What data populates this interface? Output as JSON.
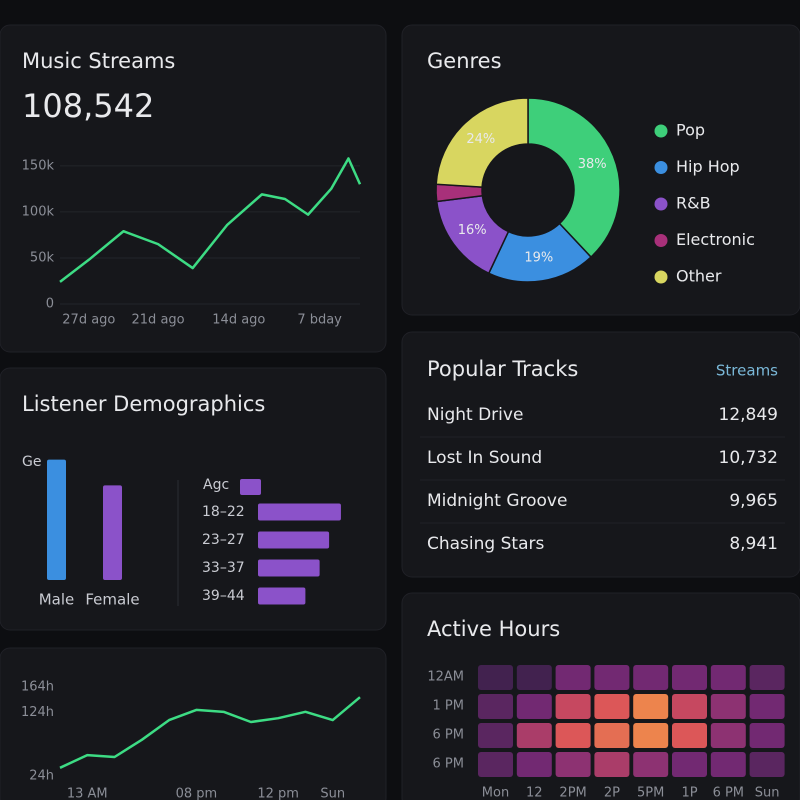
{
  "streams": {
    "title": "Music Streams",
    "total": "108,542",
    "chart": {
      "type": "line",
      "color": "#3ddc84",
      "x": [
        -29.5,
        -27,
        -24,
        -21,
        -18,
        -15,
        -12,
        -10,
        -8,
        -6,
        -4.5,
        -3.5
      ],
      "values": [
        24000,
        48000,
        79000,
        65000,
        39000,
        86000,
        119000,
        114000,
        97000,
        125000,
        158000,
        130000
      ],
      "xlim": [
        -29.5,
        -3.5
      ],
      "xticks": [
        {
          "value": -27,
          "label": "27d ago"
        },
        {
          "value": -21,
          "label": "21d ago"
        },
        {
          "value": -14,
          "label": "14d ago"
        },
        {
          "value": -7,
          "label": "7 bday"
        }
      ],
      "ylim": [
        0,
        165000
      ],
      "yticks": [
        0,
        {
          "value": 50000,
          "label": "50k"
        },
        {
          "value": 100000,
          "label": "100k"
        },
        {
          "value": 150000,
          "label": "150k"
        }
      ],
      "grid": true
    }
  },
  "genres": {
    "title": "Genres",
    "chart": {
      "type": "donut",
      "categories": [
        "Pop",
        "Hip Hop",
        "R&B",
        "Electronic",
        "Other"
      ],
      "values": [
        38,
        19,
        16,
        3,
        24
      ],
      "value_labels": [
        "38%",
        "19%",
        "16%",
        null,
        "24%"
      ],
      "colors": [
        "#3ecf7a",
        "#3b8fe0",
        "#8b52c9",
        "#a8307a",
        "#d8d660"
      ]
    }
  },
  "demographics": {
    "title": "Listener Demographics",
    "gender": {
      "label": "Ge",
      "type": "bar",
      "categories": [
        "Male",
        "Female"
      ],
      "values": [
        56,
        44
      ],
      "colors": [
        "#3b8fe0",
        "#8b52c9"
      ]
    },
    "age": {
      "label": "Agc",
      "type": "hbar",
      "categories": [
        "18–22",
        "23–27",
        "33–37",
        "39–44"
      ],
      "values": [
        35,
        30,
        26,
        20
      ],
      "color": "#8b52c9"
    }
  },
  "tracks": {
    "title": "Popular Tracks",
    "column": "Streams",
    "rows": [
      {
        "name": "Night Drive",
        "streams": "12,849"
      },
      {
        "name": "Lost In Sound",
        "streams": "10,732"
      },
      {
        "name": "Midnight Groove",
        "streams": "9,965"
      },
      {
        "name": "Chasing Stars",
        "streams": "8,941"
      }
    ]
  },
  "hours_chart": {
    "type": "line",
    "color": "#3ddc84",
    "categories": [
      null,
      "13 AM",
      null,
      null,
      null,
      "08 pm",
      null,
      null,
      "12 pm",
      null,
      "Sun",
      null
    ],
    "values": [
      37,
      57,
      54,
      81,
      112,
      128,
      125,
      109,
      115,
      125,
      112,
      148
    ],
    "ylim": [
      10,
      175
    ],
    "yticks": [
      {
        "value": 24,
        "label": "24h"
      },
      {
        "value": 124,
        "label": "124h"
      },
      {
        "value": 164,
        "label": "164h"
      }
    ]
  },
  "active_hours": {
    "title": "Active Hours",
    "type": "heatmap",
    "rows": [
      "12AM",
      "1 PM",
      "6 PM",
      "6 PM"
    ],
    "columns": [
      "Mon",
      "12",
      "2PM",
      "2P",
      "5PM",
      "1P",
      "6 PM",
      "Sun"
    ],
    "values": [
      [
        1,
        1,
        3,
        3,
        3,
        3,
        3,
        2
      ],
      [
        2,
        3,
        6,
        7,
        9,
        6,
        4,
        3
      ],
      [
        2,
        5,
        7,
        8,
        9,
        7,
        4,
        3
      ],
      [
        2,
        3,
        4,
        5,
        4,
        3,
        3,
        2
      ]
    ],
    "vlim": [
      0,
      10
    ],
    "colors": [
      "#2a1f3d",
      "#7a2a78",
      "#d9505a",
      "#f59a48"
    ]
  }
}
